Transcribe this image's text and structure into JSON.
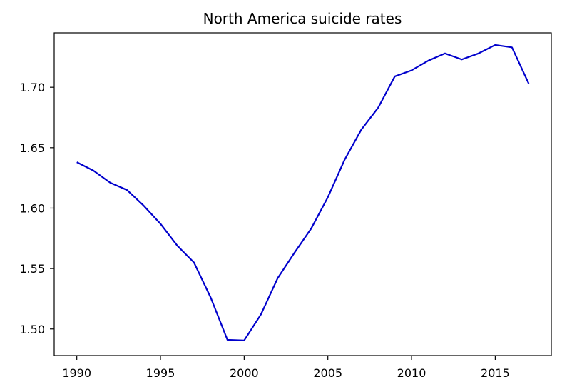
{
  "chart_data": {
    "type": "line",
    "title": "North America suicide rates",
    "xlabel": "",
    "ylabel": "",
    "xlim": [
      1988.65,
      2018.35
    ],
    "ylim": [
      1.478,
      1.745
    ],
    "x_ticks": [
      1990,
      1995,
      2000,
      2005,
      2010,
      2015
    ],
    "y_ticks": [
      1.5,
      1.55,
      1.6,
      1.65,
      1.7
    ],
    "y_tick_labels": [
      "1.50",
      "1.55",
      "1.60",
      "1.65",
      "1.70"
    ],
    "grid": false,
    "series": [
      {
        "color": "#0000cc",
        "x": [
          1990,
          1991,
          1992,
          1993,
          1994,
          1995,
          1996,
          1997,
          1998,
          1999,
          2000,
          2001,
          2002,
          2003,
          2004,
          2005,
          2006,
          2007,
          2008,
          2009,
          2010,
          2011,
          2012,
          2013,
          2014,
          2015,
          2016,
          2017
        ],
        "y": [
          1.638,
          1.631,
          1.621,
          1.615,
          1.602,
          1.587,
          1.569,
          1.555,
          1.526,
          1.491,
          1.4905,
          1.512,
          1.542,
          1.563,
          1.583,
          1.609,
          1.64,
          1.665,
          1.683,
          1.709,
          1.714,
          1.722,
          1.728,
          1.723,
          1.728,
          1.735,
          1.733,
          1.703
        ]
      }
    ]
  }
}
